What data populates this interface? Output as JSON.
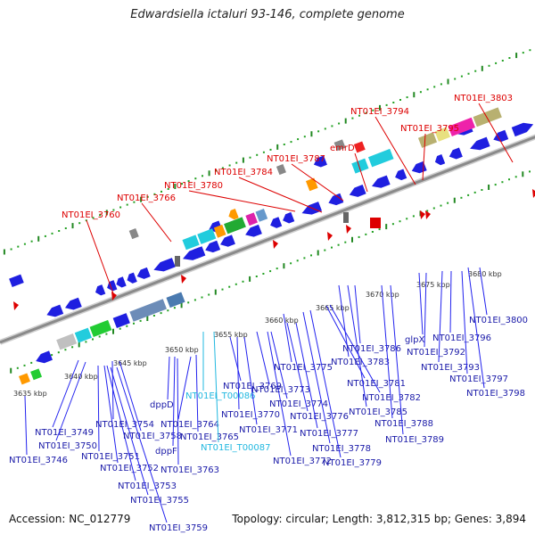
{
  "map": {
    "title": "Edwardsiella ictaluri 93-146, complete genome",
    "accession": "Accession: NC_012779",
    "summary": "Topology: circular; Length: 3,812,315 bp; Genes: 3,894",
    "colors": {
      "backbone": "#8a8a8a",
      "forward_gene": "#1f1fe0",
      "reverse_gene": "#1f1fe0",
      "rna_gene": "#18b0d8",
      "callout": "#dd0000",
      "label_forward": "#1a1aa8",
      "label_rna": "#22b8e0",
      "tick_minor": "#22a022",
      "tick_major": "#228822"
    },
    "ruler_labels": [
      "3635 kbp",
      "3640 kbp",
      "3645 kbp",
      "3650 kbp",
      "3655 kbp",
      "3660 kbp",
      "3665 kbp",
      "3670 kbp",
      "3675 kbp",
      "3680 kbp"
    ],
    "top_labels": [
      "NT01EI_3760",
      "NT01EI_3766",
      "NT01EI_3780",
      "NT01EI_3784",
      "NT01EI_3787",
      "emrD",
      "NT01EI_3794",
      "NT01EI_3795",
      "NT01EI_3803"
    ],
    "bottom_labels": [
      "NT01EI_3746",
      "NT01EI_3749",
      "NT01EI_3750",
      "NT01EI_3751",
      "NT01EI_3752",
      "NT01EI_3753",
      "NT01EI_3754",
      "NT01EI_3755",
      "NT01EI_3758",
      "NT01EI_3759",
      "dppD",
      "dppF",
      "NT01EI_3763",
      "NT01EI_3764",
      "NT01EI_3765",
      "NT01EI_T00086",
      "NT01EI_T00087",
      "NT01EI_3769",
      "NT01EI_3770",
      "NT01EI_3771",
      "NT01EI_3772",
      "NT01EI_3773",
      "NT01EI_3774",
      "NT01EI_3775",
      "NT01EI_3776",
      "NT01EI_3777",
      "NT01EI_3778",
      "NT01EI_3779",
      "NT01EI_3781",
      "NT01EI_3782",
      "NT01EI_3783",
      "NT01EI_3785",
      "NT01EI_3786",
      "NT01EI_3788",
      "NT01EI_3789",
      "glpX",
      "NT01EI_3792",
      "NT01EI_3793",
      "NT01EI_3796",
      "NT01EI_3797",
      "NT01EI_3798",
      "NT01EI_3800"
    ]
  }
}
